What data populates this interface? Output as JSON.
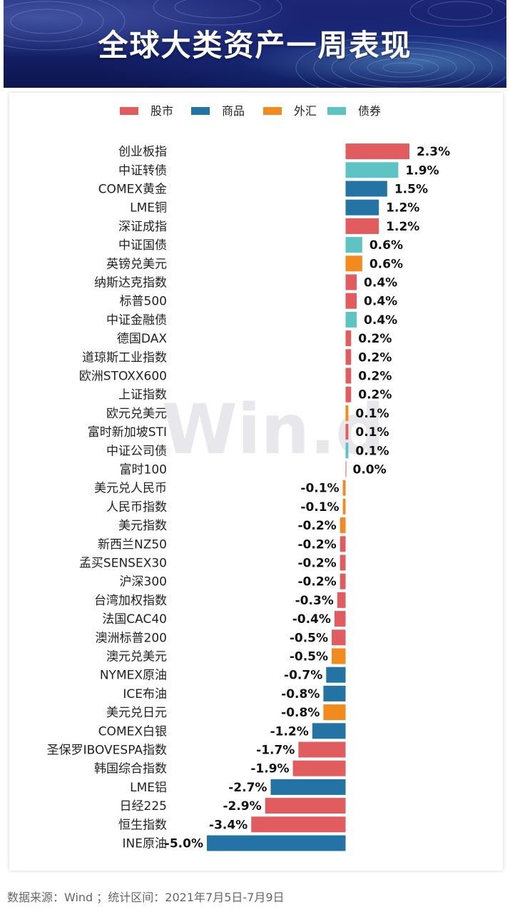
{
  "title": "全球大类资产一周表现",
  "footer": "数据来源：Wind ；统计区间：2021年7月5日-7月9日",
  "watermark": "Win.d",
  "colors": {
    "股市": "#e05c5e",
    "商品": "#2374a4",
    "外汇": "#f28a1d",
    "债券": "#5ec3c3"
  },
  "chart_data": {
    "type": "bar",
    "orientation": "horizontal",
    "unit": "%",
    "legend": [
      "股市",
      "商品",
      "外汇",
      "债券"
    ],
    "legend_position": "top",
    "xlim": [
      -5.0,
      2.3
    ],
    "grid": false,
    "categories": [
      "创业板指",
      "中证转债",
      "COMEX黄金",
      "LME铜",
      "深证成指",
      "中证国债",
      "英镑兑美元",
      "纳斯达克指数",
      "标普500",
      "中证金融债",
      "德国DAX",
      "道琼斯工业指数",
      "欧洲STOXX600",
      "上证指数",
      "欧元兑美元",
      "富时新加坡STI",
      "中证公司债",
      "富时100",
      "美元兑人民币",
      "人民币指数",
      "美元指数",
      "新西兰NZ50",
      "孟买SENSEX30",
      "沪深300",
      "台湾加权指数",
      "法国CAC40",
      "澳洲标普200",
      "澳元兑美元",
      "NYMEX原油",
      "ICE布油",
      "美元兑日元",
      "COMEX白银",
      "圣保罗IBOVESPA指数",
      "韩国综合指数",
      "LME铝",
      "日经225",
      "恒生指数",
      "INE原油"
    ],
    "values": [
      2.3,
      1.9,
      1.5,
      1.2,
      1.2,
      0.6,
      0.6,
      0.4,
      0.4,
      0.4,
      0.2,
      0.2,
      0.2,
      0.2,
      0.1,
      0.1,
      0.1,
      0.0,
      -0.1,
      -0.1,
      -0.2,
      -0.2,
      -0.2,
      -0.2,
      -0.3,
      -0.4,
      -0.5,
      -0.5,
      -0.7,
      -0.8,
      -0.8,
      -1.2,
      -1.7,
      -1.9,
      -2.7,
      -2.9,
      -3.4,
      -5.0
    ],
    "groups": [
      "股市",
      "债券",
      "商品",
      "商品",
      "股市",
      "债券",
      "外汇",
      "股市",
      "股市",
      "债券",
      "股市",
      "股市",
      "股市",
      "股市",
      "外汇",
      "股市",
      "债券",
      "股市",
      "外汇",
      "外汇",
      "外汇",
      "股市",
      "股市",
      "股市",
      "股市",
      "股市",
      "股市",
      "外汇",
      "商品",
      "商品",
      "外汇",
      "商品",
      "股市",
      "股市",
      "商品",
      "股市",
      "股市",
      "商品"
    ],
    "labels": [
      "2.3%",
      "1.9%",
      "1.5%",
      "1.2%",
      "1.2%",
      "0.6%",
      "0.6%",
      "0.4%",
      "0.4%",
      "0.4%",
      "0.2%",
      "0.2%",
      "0.2%",
      "0.2%",
      "0.1%",
      "0.1%",
      "0.1%",
      "0.0%",
      "-0.1%",
      "-0.1%",
      "-0.2%",
      "-0.2%",
      "-0.2%",
      "-0.2%",
      "-0.3%",
      "-0.4%",
      "-0.5%",
      "-0.5%",
      "-0.7%",
      "-0.8%",
      "-0.8%",
      "-1.2%",
      "-1.7%",
      "-1.9%",
      "-2.7%",
      "-2.9%",
      "-3.4%",
      "-5.0%"
    ]
  }
}
